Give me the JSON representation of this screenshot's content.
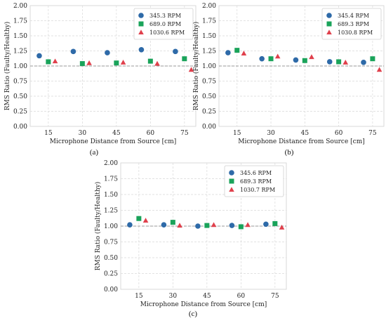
{
  "colors": {
    "series_1": "#2e6aa8",
    "series_2": "#1aa35a",
    "series_3": "#e0404c",
    "grid": "#d9d9d9",
    "reference_line": "#9a9a9a"
  },
  "chart_data": [
    {
      "type": "scatter",
      "panel_label": "(a)",
      "xlabel": "Microphone Distance from Source [cm]",
      "ylabel": "RMS Ratio (Faulty/Healthy)",
      "xticks": [
        15,
        30,
        45,
        60,
        75
      ],
      "yticks": [
        "0.00",
        "0.25",
        "0.50",
        "0.75",
        "1.00",
        "1.25",
        "1.50",
        "1.75",
        "2.00"
      ],
      "xlim": [
        7,
        80
      ],
      "ylim": [
        0,
        2
      ],
      "grid": true,
      "reference_line": 1.0,
      "legend_position": "top-right",
      "series": [
        {
          "name": "345.3 RPM",
          "marker": "circle",
          "x": [
            11,
            26,
            41,
            56,
            71
          ],
          "y": [
            1.17,
            1.24,
            1.22,
            1.27,
            1.24
          ]
        },
        {
          "name": "689.0 RPM",
          "marker": "square",
          "x": [
            15,
            30,
            45,
            60,
            75
          ],
          "y": [
            1.07,
            1.04,
            1.05,
            1.08,
            1.12
          ]
        },
        {
          "name": "1030.6 RPM",
          "marker": "triangle",
          "x": [
            18,
            33,
            48,
            63,
            78
          ],
          "y": [
            1.08,
            1.05,
            1.06,
            1.04,
            0.94
          ]
        }
      ]
    },
    {
      "type": "scatter",
      "panel_label": "(b)",
      "xlabel": "Microphone Distance from Source [cm]",
      "ylabel": "RMS Ratio (Faulty/Healthy)",
      "xticks": [
        15,
        30,
        45,
        60,
        75
      ],
      "yticks": [
        "0.00",
        "0.25",
        "0.50",
        "0.75",
        "1.00",
        "1.25",
        "1.50",
        "1.75",
        "2.00"
      ],
      "xlim": [
        7,
        80
      ],
      "ylim": [
        0,
        2
      ],
      "grid": true,
      "reference_line": 1.0,
      "legend_position": "top-right",
      "series": [
        {
          "name": "345.4 RPM",
          "marker": "circle",
          "x": [
            11,
            26,
            41,
            56,
            71
          ],
          "y": [
            1.22,
            1.12,
            1.1,
            1.07,
            1.06
          ]
        },
        {
          "name": "689.3 RPM",
          "marker": "square",
          "x": [
            15,
            30,
            45,
            60,
            75
          ],
          "y": [
            1.26,
            1.12,
            1.09,
            1.07,
            1.12
          ]
        },
        {
          "name": "1030.8 RPM",
          "marker": "triangle",
          "x": [
            18,
            33,
            48,
            63,
            78
          ],
          "y": [
            1.21,
            1.16,
            1.15,
            1.06,
            0.94
          ]
        }
      ]
    },
    {
      "type": "scatter",
      "panel_label": "(c)",
      "xlabel": "Microphone Distance from Source [cm]",
      "ylabel": "RMS Ratio (Faulty/Healthy)",
      "xticks": [
        15,
        30,
        45,
        60,
        75
      ],
      "yticks": [
        "0.00",
        "0.25",
        "0.50",
        "0.75",
        "1.00",
        "1.25",
        "1.50",
        "1.75",
        "2.00"
      ],
      "xlim": [
        7,
        80
      ],
      "ylim": [
        0,
        2
      ],
      "grid": true,
      "reference_line": 1.0,
      "legend_position": "top-right",
      "series": [
        {
          "name": "345.6 RPM",
          "marker": "circle",
          "x": [
            11,
            26,
            41,
            56,
            71
          ],
          "y": [
            1.02,
            1.02,
            1.0,
            1.01,
            1.03
          ]
        },
        {
          "name": "689.3 RPM",
          "marker": "square",
          "x": [
            15,
            30,
            45,
            60,
            75
          ],
          "y": [
            1.12,
            1.06,
            1.01,
            0.99,
            1.04
          ]
        },
        {
          "name": "1030.7 RPM",
          "marker": "triangle",
          "x": [
            18,
            33,
            48,
            63,
            78
          ],
          "y": [
            1.09,
            1.01,
            1.02,
            1.02,
            0.98
          ]
        }
      ]
    }
  ]
}
